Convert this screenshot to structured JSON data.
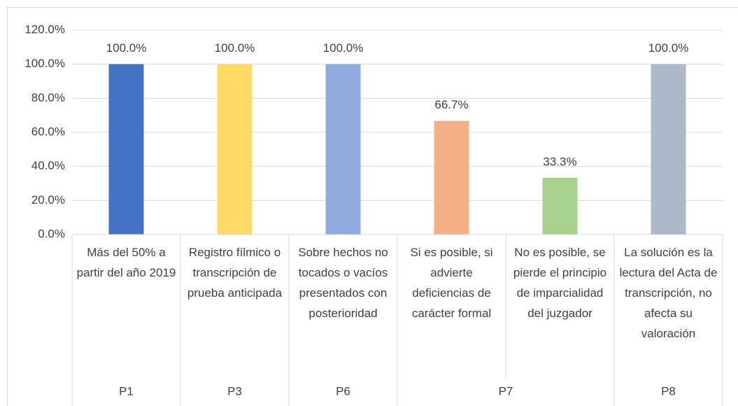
{
  "chart_data": {
    "type": "bar",
    "categories": [
      "Más del 50% a partir del año 2019",
      "Registro fílmico o transcripción de prueba anticipada",
      "Sobre hechos no tocados o vacíos presentados con posterioridad",
      "Si es posible, si advierte deficiencias de carácter formal",
      "No es posible, se pierde el principio de imparcialidad del juzgador",
      "La solución es la lectura del Acta de transcripción, no afecta su valoración"
    ],
    "groups": [
      {
        "name": "P1",
        "size": 1
      },
      {
        "name": "P3",
        "size": 1
      },
      {
        "name": "P6",
        "size": 1
      },
      {
        "name": "P7",
        "size": 2
      },
      {
        "name": "P8",
        "size": 1
      }
    ],
    "values": [
      100,
      100,
      100,
      66.7,
      33.3,
      100
    ],
    "value_labels": [
      "100.0%",
      "100.0%",
      "100.0%",
      "66.7%",
      "33.3%",
      "100.0%"
    ],
    "colors": [
      "#4472c4",
      "#ffd966",
      "#8faadc",
      "#f4b183",
      "#a9d18e",
      "#adb9ca"
    ],
    "ylim": [
      0,
      120
    ],
    "yticks": [
      {
        "value": 0,
        "label": "0.0%"
      },
      {
        "value": 20,
        "label": "20.0%"
      },
      {
        "value": 40,
        "label": "40.0%"
      },
      {
        "value": 60,
        "label": "60.0%"
      },
      {
        "value": 80,
        "label": "80.0%"
      },
      {
        "value": 100,
        "label": "100.0%"
      },
      {
        "value": 120,
        "label": "120.0%"
      }
    ],
    "grid": true
  }
}
